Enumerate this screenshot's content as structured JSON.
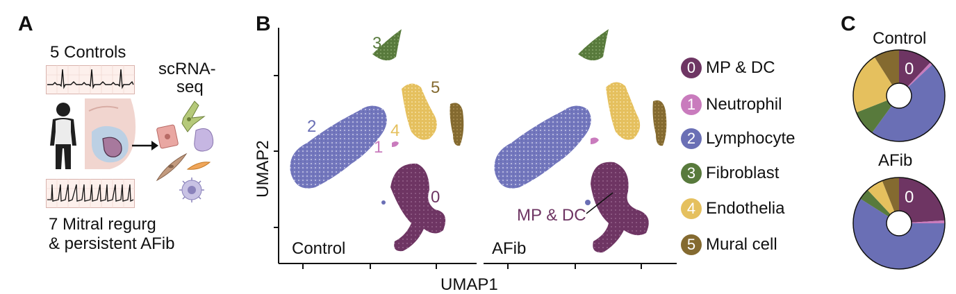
{
  "panel_a": {
    "letter": "A",
    "controls_label": "5 Controls",
    "assay_label_line1": "scRNA-",
    "assay_label_line2": "seq",
    "patients_line1": "7 Mitral regurg",
    "patients_line2": "& persistent AFib"
  },
  "panel_b": {
    "letter": "B",
    "x_axis_label": "UMAP1",
    "y_axis_label": "UMAP2",
    "control_label": "Control",
    "afib_label": "AFib",
    "annotation": "MP & DC",
    "cluster_ids": [
      "0",
      "1",
      "2",
      "3",
      "4",
      "5"
    ]
  },
  "legend": {
    "items": [
      {
        "id": "0",
        "label": "MP & DC",
        "color": "#6e3563"
      },
      {
        "id": "1",
        "label": "Neutrophil",
        "color": "#c97bbd"
      },
      {
        "id": "2",
        "label": "Lymphocyte",
        "color": "#6a6fb5"
      },
      {
        "id": "3",
        "label": "Fibroblast",
        "color": "#587a3c"
      },
      {
        "id": "4",
        "label": "Endothelia",
        "color": "#e5c05e"
      },
      {
        "id": "5",
        "label": "Mural cell",
        "color": "#846a30"
      }
    ]
  },
  "panel_c": {
    "letter": "C",
    "control_title": "Control",
    "afib_title": "AFib",
    "slice_label": "0"
  },
  "chart_data": [
    {
      "type": "pie",
      "title": "Control",
      "categories": [
        "MP & DC",
        "Neutrophil",
        "Lymphocyte",
        "Fibroblast",
        "Endothelia",
        "Mural cell"
      ],
      "values": [
        12,
        1,
        47,
        9,
        22,
        9
      ],
      "colors": [
        "#6e3563",
        "#c97bbd",
        "#6a6fb5",
        "#587a3c",
        "#e5c05e",
        "#846a30"
      ]
    },
    {
      "type": "pie",
      "title": "AFib",
      "categories": [
        "MP & DC",
        "Neutrophil",
        "Lymphocyte",
        "Fibroblast",
        "Endothelia",
        "Mural cell"
      ],
      "values": [
        24,
        1,
        59,
        4,
        6,
        6
      ],
      "colors": [
        "#6e3563",
        "#c97bbd",
        "#6a6fb5",
        "#587a3c",
        "#e5c05e",
        "#846a30"
      ]
    }
  ]
}
